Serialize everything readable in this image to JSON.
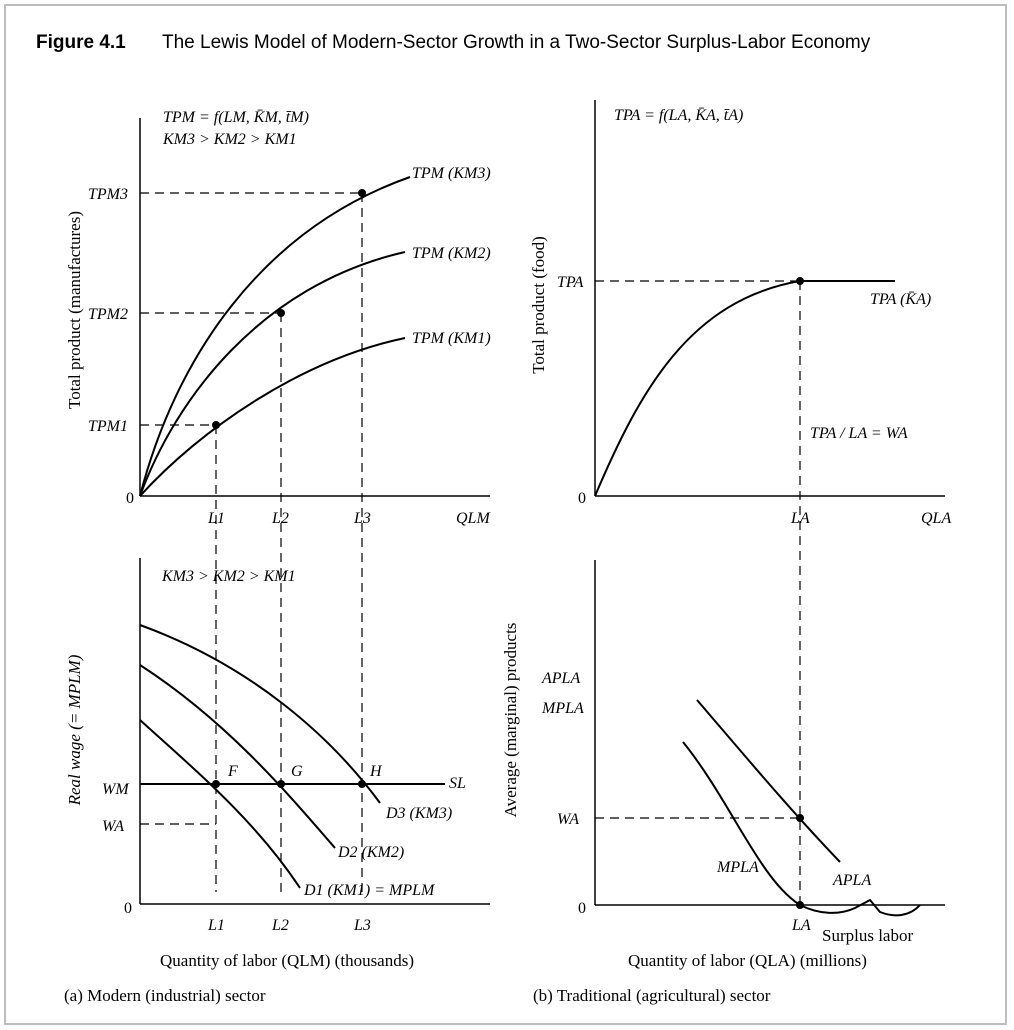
{
  "figure": {
    "number": "Figure 4.1",
    "title": "The Lewis Model of Modern-Sector Growth in a Two-Sector Surplus-Labor Economy"
  },
  "panel_a": {
    "caption": "(a) Modern (industrial) sector",
    "top": {
      "ylabel": "Total product (manufactures)",
      "eq1": "TPM = f(LM, K̄M, t̄M)",
      "eq2": "KM3 > KM2 > KM1",
      "origin": "0",
      "x_axis": "QLM",
      "x_ticks": [
        "L1",
        "L2",
        "L3"
      ],
      "y_ticks": [
        "TPM3",
        "TPM2",
        "TPM1"
      ],
      "curves": [
        "TPM (KM3)",
        "TPM (KM2)",
        "TPM (KM1)"
      ]
    },
    "bottom": {
      "ylabel": "Real wage (= MPLM)",
      "note": "KM3 > KM2 > KM1",
      "origin": "0",
      "x_ticks": [
        "L1",
        "L2",
        "L3"
      ],
      "y_ticks": [
        "WM",
        "WA"
      ],
      "points": [
        "F",
        "G",
        "H"
      ],
      "supply": "SL",
      "demand": [
        "D1 (KM1) = MPLM",
        "D2 (KM2)",
        "D3 (KM3)"
      ],
      "xlabel": "Quantity of labor (QLM) (thousands)"
    }
  },
  "panel_b": {
    "caption": "(b) Traditional (agricultural) sector",
    "top": {
      "ylabel": "Total product (food)",
      "eq": "TPA = f(LA, K̄A, t̄A)",
      "origin": "0",
      "x_axis": "QLA",
      "x_tick": "LA",
      "y_tick": "TPA",
      "curve": "TPA (K̄A)",
      "ratio": "TPA / LA = WA"
    },
    "bottom": {
      "ylabel": "Average (marginal) products",
      "origin": "0",
      "y_ticks": [
        "APLA",
        "MPLA",
        "WA"
      ],
      "x_tick": "LA",
      "curves": [
        "MPLA",
        "APLA"
      ],
      "surplus": "Surplus labor",
      "xlabel": "Quantity of labor (QLA) (millions)"
    }
  }
}
